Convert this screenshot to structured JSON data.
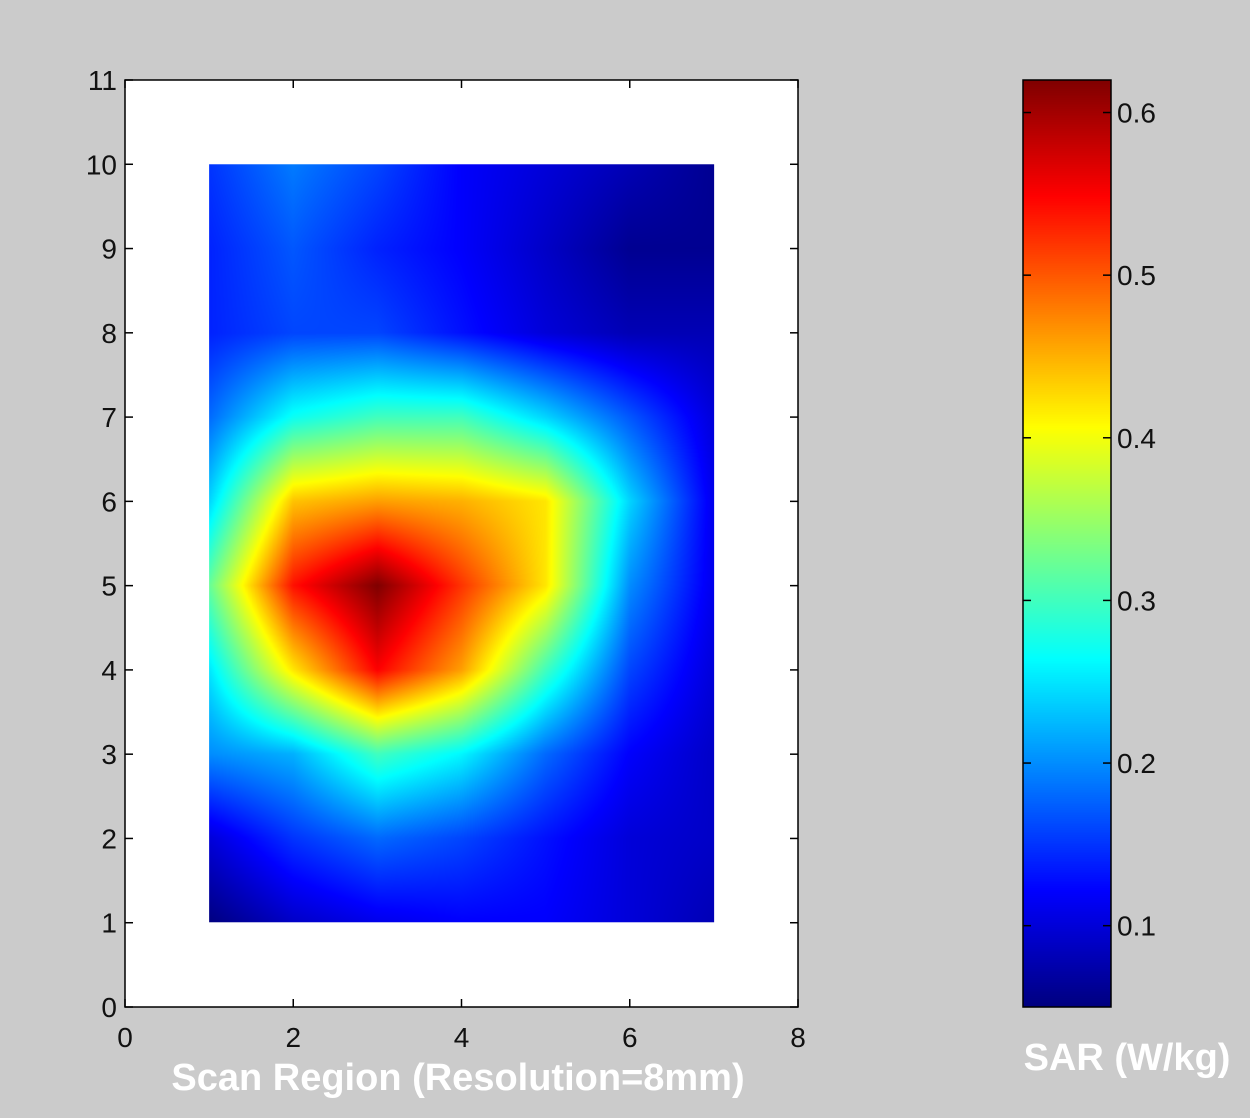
{
  "chart_data": [
    {
      "type": "heatmap",
      "title": "",
      "xlabel": "Scan Region (Resolution=8mm)",
      "ylabel": "",
      "xlim": [
        0,
        8
      ],
      "ylim": [
        0,
        11
      ],
      "x_ticks": [
        0,
        2,
        4,
        6,
        8
      ],
      "y_ticks": [
        0,
        1,
        2,
        3,
        4,
        5,
        6,
        7,
        8,
        9,
        10,
        11
      ],
      "grid": false,
      "colormap": "jet",
      "color_range": [
        0.05,
        0.62
      ],
      "x": [
        1,
        2,
        3,
        4,
        5,
        6,
        7
      ],
      "y": [
        1,
        2,
        3,
        4,
        5,
        6,
        7,
        8,
        9,
        10
      ],
      "z": [
        [
          0.05,
          0.09,
          0.11,
          0.12,
          0.12,
          0.1,
          0.08
        ],
        [
          0.1,
          0.15,
          0.18,
          0.16,
          0.13,
          0.1,
          0.09
        ],
        [
          0.2,
          0.22,
          0.3,
          0.26,
          0.18,
          0.12,
          0.09
        ],
        [
          0.25,
          0.42,
          0.55,
          0.46,
          0.3,
          0.16,
          0.1
        ],
        [
          0.32,
          0.54,
          0.62,
          0.52,
          0.42,
          0.2,
          0.11
        ],
        [
          0.24,
          0.44,
          0.46,
          0.45,
          0.42,
          0.24,
          0.11
        ],
        [
          0.18,
          0.27,
          0.3,
          0.3,
          0.24,
          0.17,
          0.1
        ],
        [
          0.14,
          0.16,
          0.16,
          0.13,
          0.1,
          0.08,
          0.08
        ],
        [
          0.14,
          0.17,
          0.14,
          0.12,
          0.09,
          0.06,
          0.06
        ],
        [
          0.15,
          0.19,
          0.16,
          0.12,
          0.1,
          0.08,
          0.06
        ]
      ]
    },
    {
      "type": "colorbar",
      "colormap": "jet",
      "range": [
        0.05,
        0.62
      ],
      "ticks": [
        0.1,
        0.2,
        0.3,
        0.4,
        0.5,
        0.6
      ],
      "label": "SAR (W/kg)"
    }
  ],
  "colors": {
    "background": "#cbcbcb",
    "axes_background": "#ffffff",
    "label_text": "#ffffff"
  }
}
